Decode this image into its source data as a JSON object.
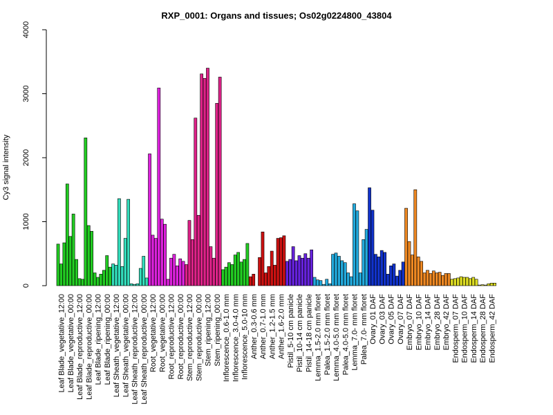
{
  "chart_data": {
    "type": "bar",
    "title": "RXP_0001: Organs and tissues; Os02g0224800_43804",
    "ylabel": "Cy3 signal intensity",
    "xlabel": "",
    "ylim": [
      0,
      4000
    ],
    "yticks": [
      0,
      1000,
      2000,
      3000,
      4000
    ],
    "grid": false,
    "legend": "none",
    "groups": [
      {
        "label": "Leaf Blade_vegetative_12:00",
        "color": "#22cc22",
        "values": [
          650,
          340,
          670
        ]
      },
      {
        "label": "Leaf Blade_vegetative_00:00",
        "color": "#22cc22",
        "values": [
          1590,
          770,
          1120
        ]
      },
      {
        "label": "Leaf Blade_reproductive_12:00",
        "color": "#22cc22",
        "values": [
          410,
          110,
          100
        ]
      },
      {
        "label": "Leaf Blade_reproductive_00:00",
        "color": "#22cc22",
        "values": [
          2310,
          940,
          850
        ]
      },
      {
        "label": "Leaf Blade_ripening_12:00",
        "color": "#22cc22",
        "values": [
          200,
          130,
          180
        ]
      },
      {
        "label": "Leaf Blade_ripening_00:00",
        "color": "#22cc22",
        "values": [
          240,
          470,
          290
        ]
      },
      {
        "label": "Leaf Sheath_vegetative_12:00",
        "color": "#33ddbb",
        "values": [
          340,
          320,
          1360
        ]
      },
      {
        "label": "Leaf Sheath_vegetative_00:00",
        "color": "#33ddbb",
        "values": [
          300,
          740,
          1350
        ]
      },
      {
        "label": "Leaf Sheath_reproductive_12:00",
        "color": "#33ddbb",
        "values": [
          30,
          20,
          30
        ]
      },
      {
        "label": "Leaf Sheath_reproductive_00:00",
        "color": "#33ddbb",
        "values": [
          270,
          460,
          120
        ]
      },
      {
        "label": "Root_vegetative_12:00",
        "color": "#dd22dd",
        "values": [
          2060,
          790,
          740
        ]
      },
      {
        "label": "Root_vegetative_00:00",
        "color": "#dd22dd",
        "values": [
          3090,
          1040,
          960
        ]
      },
      {
        "label": "Root_reproductive_12:00",
        "color": "#dd22dd",
        "values": [
          100,
          430,
          490
        ]
      },
      {
        "label": "Root_reproductive_00:00",
        "color": "#dd22dd",
        "values": [
          310,
          420,
          380
        ]
      },
      {
        "label": "Stem_reproductive_12:00",
        "color": "#dd2288",
        "values": [
          330,
          1020,
          720
        ]
      },
      {
        "label": "Stem_reproductive_00:00",
        "color": "#dd2288",
        "values": [
          2620,
          1100,
          3310
        ]
      },
      {
        "label": "Stem_ripening_12:00",
        "color": "#dd2288",
        "values": [
          3240,
          3400,
          610
        ]
      },
      {
        "label": "Stem_ripening_00:00",
        "color": "#dd2288",
        "values": [
          430,
          2850,
          3260
        ]
      },
      {
        "label": "Inflorescence_0.6-1.0 mm",
        "color": "#22cc22",
        "values": [
          250,
          290,
          360
        ]
      },
      {
        "label": "Inflorescence_3.0-4.0 mm",
        "color": "#22cc22",
        "values": [
          330,
          480,
          520
        ]
      },
      {
        "label": "Inflorescence_5.0-10 mm",
        "color": "#22cc22",
        "values": [
          370,
          410,
          660
        ]
      },
      {
        "label": "Anther_0.3-0.6 mm",
        "color": "#cc1111",
        "values": [
          140,
          180
        ]
      },
      {
        "label": "Anther_0.7-1.0 mm",
        "color": "#cc1111",
        "values": [
          440,
          840,
          200
        ]
      },
      {
        "label": "Anther_1.2-1.5 mm",
        "color": "#cc1111",
        "values": [
          300,
          540,
          320
        ]
      },
      {
        "label": "Anther_1.6-2.0 mm",
        "color": "#cc1111",
        "values": [
          740,
          750,
          780
        ]
      },
      {
        "label": "Pistil_5-10 cm panicle",
        "color": "#6622dd",
        "values": [
          380,
          410,
          610
        ]
      },
      {
        "label": "Pistil_10-14 cm panicle",
        "color": "#6622dd",
        "values": [
          390,
          470,
          430
        ]
      },
      {
        "label": "Pistil_14-18 cm panicle",
        "color": "#6622dd",
        "values": [
          500,
          430,
          560
        ]
      },
      {
        "label": "Lemma_1.5-2.0 mm floret",
        "color": "#22aadd",
        "values": [
          130,
          90,
          80
        ]
      },
      {
        "label": "Palea_1.5-2.0 mm floret",
        "color": "#22aadd",
        "values": [
          20,
          100,
          30
        ]
      },
      {
        "label": "Lemma_4.0-5.0 mm floret",
        "color": "#22aadd",
        "values": [
          490,
          510,
          460
        ]
      },
      {
        "label": "Palea_4.0-5.0 mm floret",
        "color": "#22aadd",
        "values": [
          390,
          360,
          200
        ]
      },
      {
        "label": "Lemma_7.0- mm floret",
        "color": "#22aadd",
        "values": [
          140,
          1280,
          1170
        ]
      },
      {
        "label": "Palea_7.0- mm floret",
        "color": "#22aadd",
        "values": [
          200,
          720,
          880
        ]
      },
      {
        "label": "Ovary_01 DAF",
        "color": "#1133cc",
        "values": [
          1530,
          1180,
          490
        ]
      },
      {
        "label": "Ovary_03 DAF",
        "color": "#1133cc",
        "values": [
          450,
          550,
          520
        ]
      },
      {
        "label": "Ovary_05 DAF",
        "color": "#1133cc",
        "values": [
          180,
          310,
          340
        ]
      },
      {
        "label": "Ovary_07 DAF",
        "color": "#1133cc",
        "values": [
          150,
          240,
          370
        ]
      },
      {
        "label": "Embryo_07 DAF",
        "color": "#ee8822",
        "values": [
          1210,
          690,
          480
        ]
      },
      {
        "label": "Embryo_10 DAF",
        "color": "#ee8822",
        "values": [
          1500,
          450,
          380
        ]
      },
      {
        "label": "Embryo_14 DAF",
        "color": "#ee8822",
        "values": [
          200,
          240,
          190
        ]
      },
      {
        "label": "Embryo_28 DAF",
        "color": "#ee8822",
        "values": [
          230,
          200,
          210
        ]
      },
      {
        "label": "Embryo_42 DAF",
        "color": "#ee8822",
        "values": [
          160,
          190,
          190
        ]
      },
      {
        "label": "Endosperm_07 DAF",
        "color": "#dddd22",
        "values": [
          100,
          110,
          120
        ]
      },
      {
        "label": "Endosperm_10 DAF",
        "color": "#dddd22",
        "values": [
          140,
          130,
          130
        ]
      },
      {
        "label": "Endosperm_14 DAF",
        "color": "#dddd22",
        "values": [
          110,
          130,
          100
        ]
      },
      {
        "label": "Endosperm_28 DAF",
        "color": "#dddd22",
        "values": [
          10,
          15,
          10
        ]
      },
      {
        "label": "Endosperm_42 DAF",
        "color": "#dddd22",
        "values": [
          30,
          40,
          40
        ]
      }
    ]
  }
}
